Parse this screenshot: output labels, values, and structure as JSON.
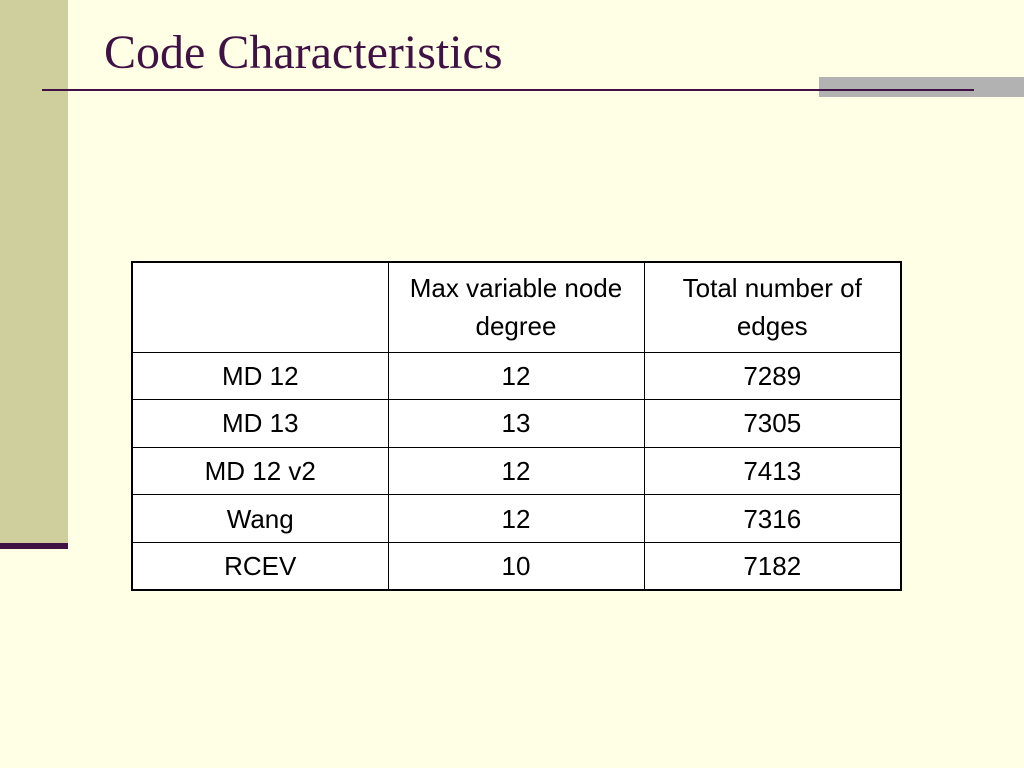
{
  "slide": {
    "title": "Code Characteristics",
    "colors": {
      "background": "#FFFFE5",
      "left_band": "#CFCF9E",
      "title_text": "#3F1145",
      "rule": "#3F1145",
      "rule_accent": "#B2B2B2"
    }
  },
  "table": {
    "headers": [
      "",
      "Max variable node degree",
      "Total number of edges"
    ],
    "rows": [
      [
        "MD 12",
        "12",
        "7289"
      ],
      [
        "MD 13",
        "13",
        "7305"
      ],
      [
        "MD 12 v2",
        "12",
        "7413"
      ],
      [
        "Wang",
        "12",
        "7316"
      ],
      [
        "RCEV",
        "10",
        "7182"
      ]
    ]
  }
}
